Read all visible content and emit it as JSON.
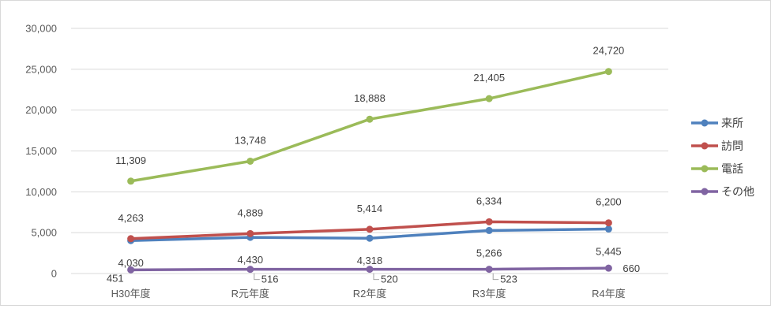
{
  "chart_data": {
    "type": "line",
    "categories": [
      "H30年度",
      "R元年度",
      "R2年度",
      "R3年度",
      "R4年度"
    ],
    "ylim": [
      0,
      30000
    ],
    "yticks": [
      0,
      5000,
      10000,
      15000,
      20000,
      25000,
      30000
    ],
    "ytick_labels": [
      "0",
      "5,000",
      "10,000",
      "15,000",
      "20,000",
      "25,000",
      "30,000"
    ],
    "grid": true,
    "legend_position": "right",
    "series": [
      {
        "name": "来所",
        "color": "#4f81bd",
        "values": [
          4030,
          4430,
          4318,
          5266,
          5445
        ],
        "labels": [
          "4,030",
          "4,430",
          "4,318",
          "5,266",
          "5,445"
        ]
      },
      {
        "name": "訪問",
        "color": "#c0504d",
        "values": [
          4263,
          4889,
          5414,
          6334,
          6200
        ],
        "labels": [
          "4,263",
          "4,889",
          "5,414",
          "6,334",
          "6,200"
        ]
      },
      {
        "name": "電話",
        "color": "#9bbb59",
        "values": [
          11309,
          13748,
          18888,
          21405,
          24720
        ],
        "labels": [
          "11,309",
          "13,748",
          "18,888",
          "21,405",
          "24,720"
        ]
      },
      {
        "name": "その他",
        "color": "#8064a2",
        "values": [
          451,
          516,
          520,
          523,
          660
        ],
        "labels": [
          "451",
          "516",
          "520",
          "523",
          "660"
        ]
      }
    ]
  }
}
